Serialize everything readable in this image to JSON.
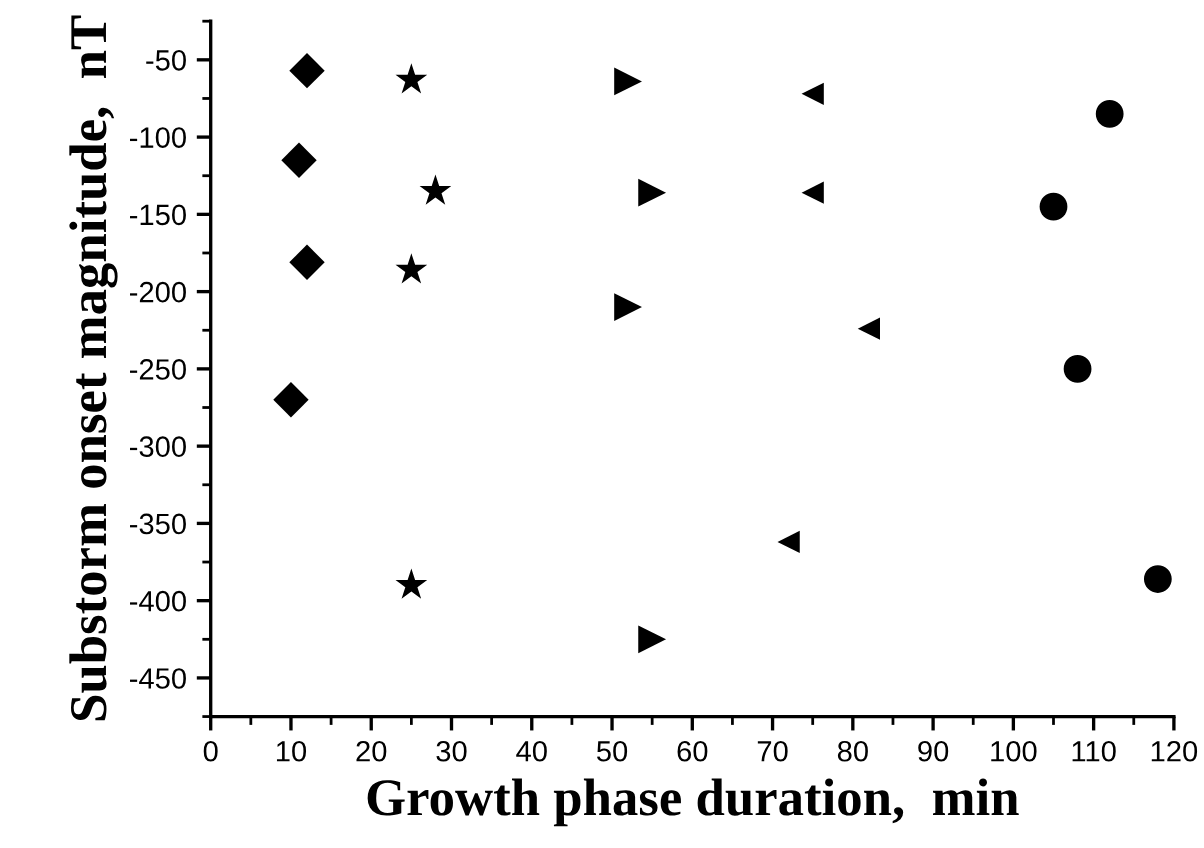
{
  "chart_data": {
    "type": "scatter",
    "xlabel": "Growth phase duration,  min",
    "ylabel": "Substorm onset magnitude,  nT",
    "xlim": [
      0,
      120
    ],
    "xticks": [
      0,
      10,
      20,
      30,
      40,
      50,
      60,
      70,
      80,
      90,
      100,
      110,
      120
    ],
    "ylim": [
      -475,
      -25
    ],
    "yticks": [
      -50,
      -100,
      -150,
      -200,
      -250,
      -300,
      -350,
      -400,
      -450
    ],
    "grid": false,
    "legend": false,
    "series": [
      {
        "color": "#000000",
        "marker": "diamond",
        "x": [
          12,
          11,
          12,
          10
        ],
        "values": [
          -57,
          -115,
          -181,
          -270
        ]
      },
      {
        "color": "#000000",
        "marker": "star",
        "x": [
          25,
          28,
          25,
          25
        ],
        "values": [
          -63,
          -135,
          -186,
          -390
        ]
      },
      {
        "color": "#000000",
        "marker": "triangle_right",
        "x": [
          52,
          55,
          52,
          55
        ],
        "values": [
          -64,
          -136,
          -210,
          -425
        ]
      },
      {
        "color": "#000000",
        "marker": "triangle_left",
        "x": [
          75,
          75,
          82,
          72
        ],
        "values": [
          -72,
          -136,
          -224,
          -362
        ]
      },
      {
        "color": "#000000",
        "marker": "circle",
        "x": [
          112,
          105,
          108,
          118
        ],
        "values": [
          -85,
          -145,
          -250,
          -386
        ]
      }
    ]
  }
}
